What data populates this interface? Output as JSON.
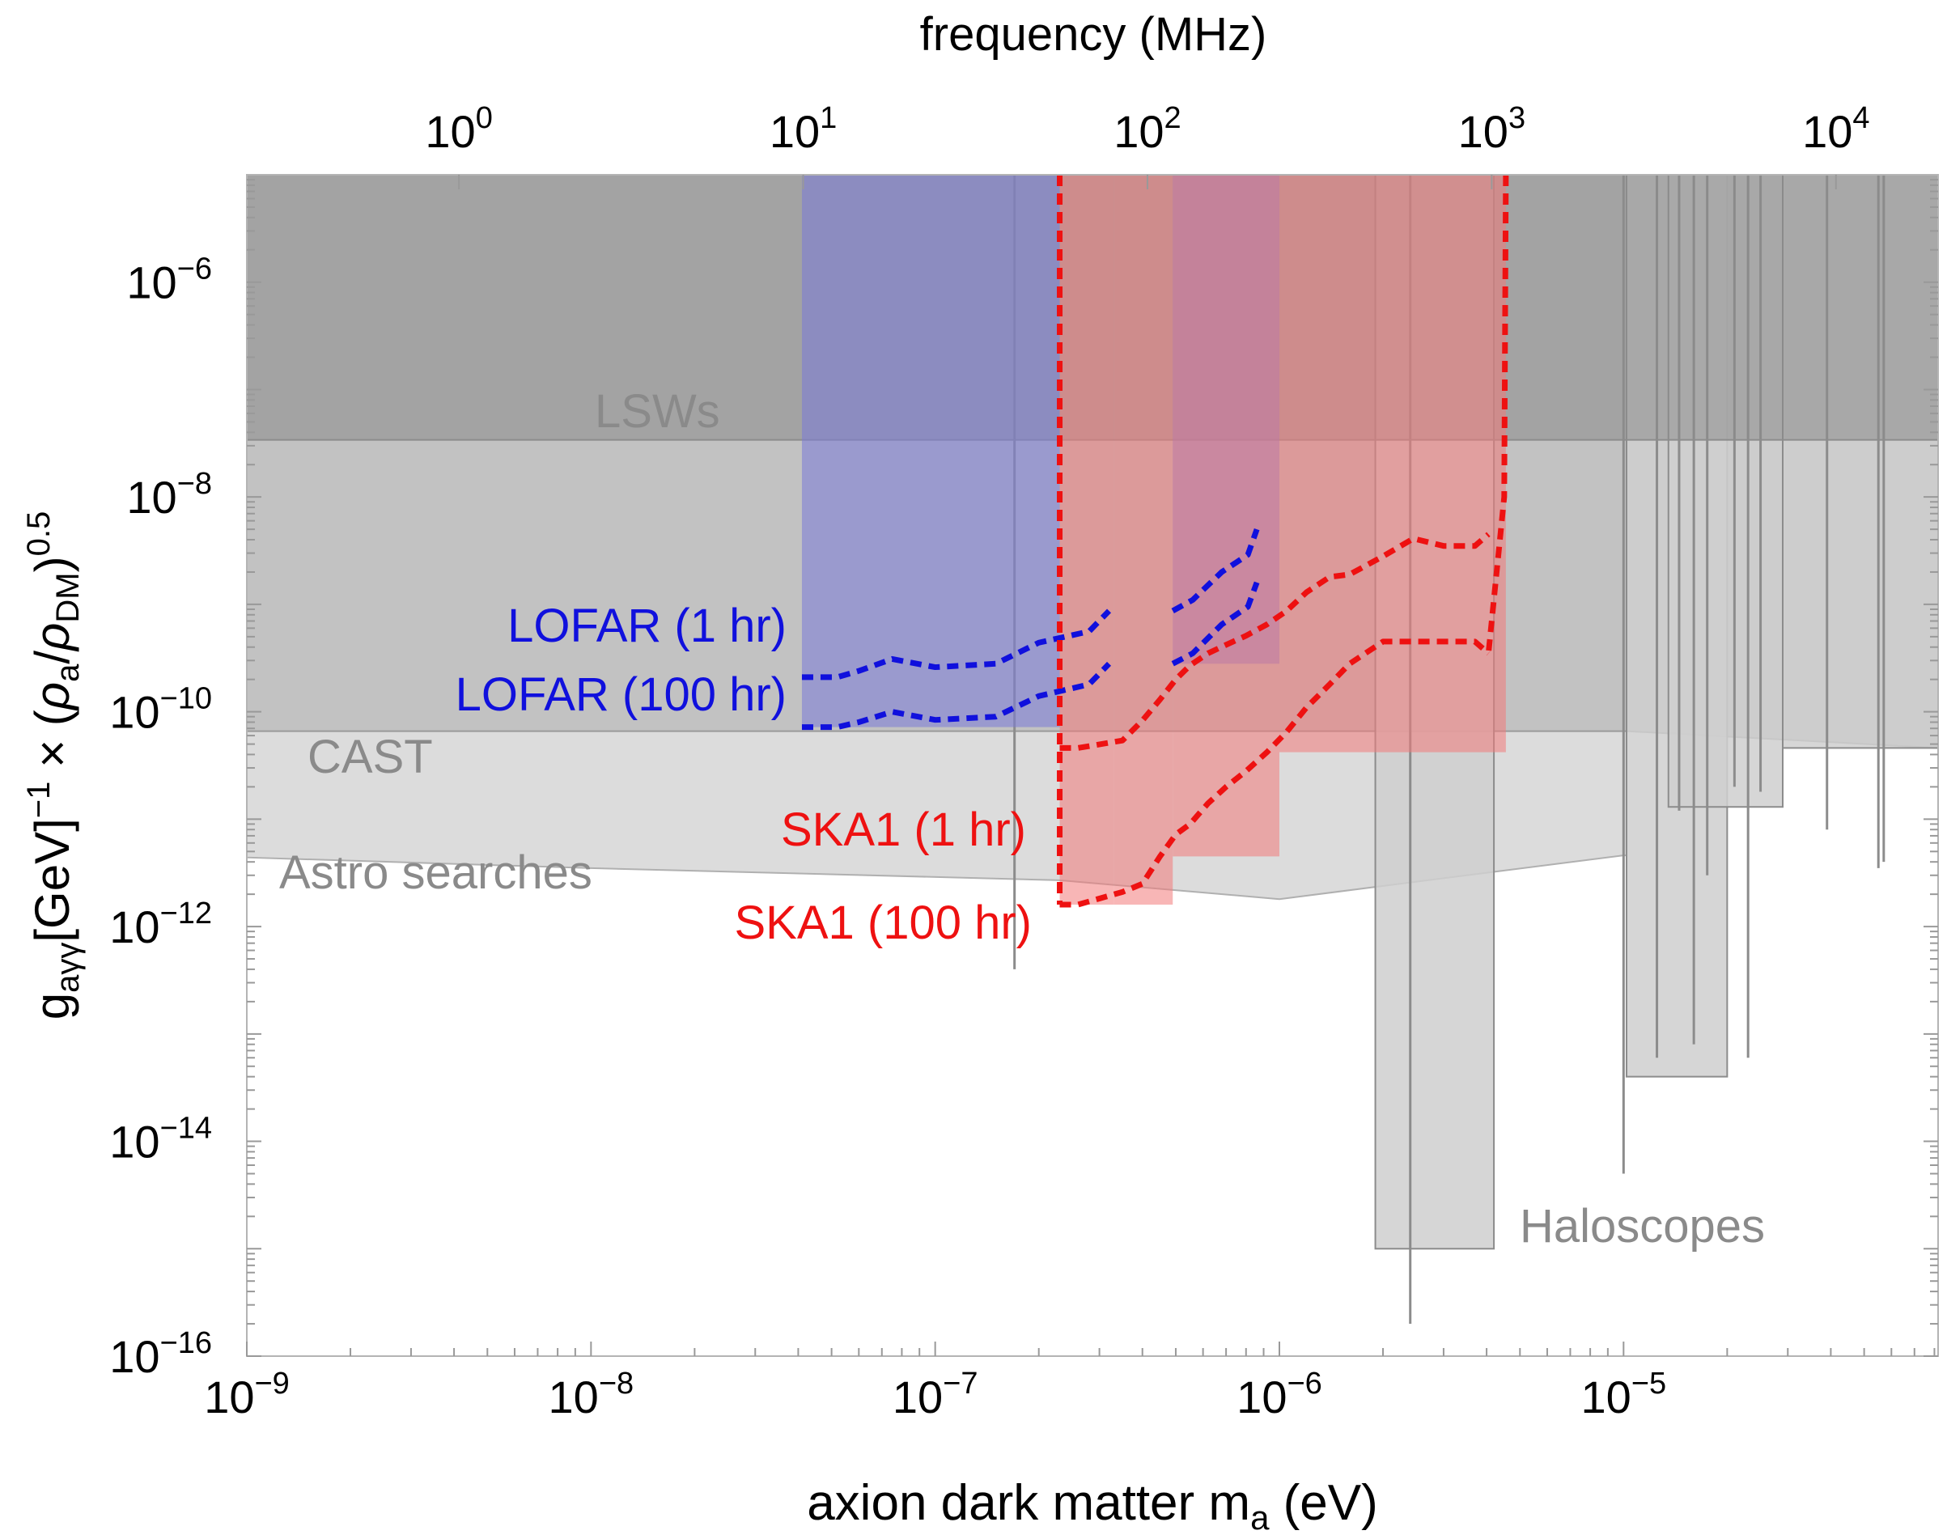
{
  "chart_data": {
    "type": "area",
    "title": "",
    "xlabel": "axion dark matter m",
    "xlabel_sub": "a",
    "xlabel_unit": " (eV)",
    "top_axis_label": "frequency (MHz)",
    "ylabel": {
      "g": "g",
      "g_sub": "aγγ",
      "mid": "[GeV]",
      "exp1": "−1",
      "times": " × (",
      "rho1": "ρ",
      "rho1_sub": "a",
      "slash": "/",
      "rho2": "ρ",
      "rho2_sub": "DM",
      "close": ")",
      "exp2": "0.5"
    },
    "x_scale": "log",
    "y_scale": "log",
    "xlim": [
      1e-09,
      8.2e-05
    ],
    "ylim": [
      1e-16,
      1e-05
    ],
    "top_axis_xlim_mhz": [
      0.242,
      19800
    ],
    "x_ticks": [
      {
        "value": 1e-09,
        "base": "10",
        "exp": "−9"
      },
      {
        "value": 1e-08,
        "base": "10",
        "exp": "−8"
      },
      {
        "value": 1e-07,
        "base": "10",
        "exp": "−7"
      },
      {
        "value": 1e-06,
        "base": "10",
        "exp": "−6"
      },
      {
        "value": 1e-05,
        "base": "10",
        "exp": "−5"
      }
    ],
    "y_ticks": [
      {
        "value": 1e-06,
        "base": "10",
        "exp": "−6"
      },
      {
        "value": 1e-08,
        "base": "10",
        "exp": "−8"
      },
      {
        "value": 1e-10,
        "base": "10",
        "exp": "−10"
      },
      {
        "value": 1e-12,
        "base": "10",
        "exp": "−12"
      },
      {
        "value": 1e-14,
        "base": "10",
        "exp": "−14"
      },
      {
        "value": 1e-16,
        "base": "10",
        "exp": "−16"
      }
    ],
    "top_ticks": [
      {
        "value": 1,
        "base": "10",
        "exp": "0"
      },
      {
        "value": 10,
        "base": "10",
        "exp": "1"
      },
      {
        "value": 100,
        "base": "10",
        "exp": "2"
      },
      {
        "value": 1000,
        "base": "10",
        "exp": "3"
      },
      {
        "value": 10000,
        "base": "10",
        "exp": "4"
      }
    ],
    "colors": {
      "lsw_fill": "#a8a8a8",
      "cast_fill": "#c2c2c2",
      "astro_fill": "#dcdcdc",
      "haloscope_fill": "#cfcfcf",
      "haloscope_edge": "#8c8c8c",
      "lofar_fill": "#7a7ad8",
      "ska_fill": "#f27a7a",
      "lofar_line": "#1010dd",
      "ska_line": "#ee1111",
      "label_gray": "#8a8a8a",
      "frame": "#b4b4b4"
    },
    "series": [
      {
        "name": "LSWs",
        "kind": "band",
        "g_min": 3.4e-08,
        "g_max": 1e-05
      },
      {
        "name": "CAST",
        "kind": "band",
        "g_min": 6.6e-11,
        "g_max": 3.4e-08,
        "upper_edge_x": [
          1e-09,
          1.02e-05,
          8.2e-05
        ],
        "upper_edge_g": [
          6.6e-11,
          6.6e-11,
          4.6e-11
        ]
      },
      {
        "name": "Astro searches",
        "kind": "limit",
        "x": [
          1e-09,
          1e-08,
          2.3e-07,
          1e-06,
          1e-05,
          1.02e-05
        ],
        "g": [
          4.4e-12,
          3.5e-12,
          2.7e-12,
          1.8e-12,
          4.6e-12,
          4.6e-12
        ]
      },
      {
        "name": "Haloscopes",
        "kind": "limit",
        "blocks": [
          {
            "x_min": 1.9e-06,
            "x_max": 4.2e-06,
            "g_min": 1e-15
          },
          {
            "x_min": 1.02e-05,
            "x_max": 2e-05,
            "g_min": 4e-14
          },
          {
            "x_min": 1.35e-05,
            "x_max": 2.9e-05,
            "g_min": 1.3e-11
          },
          {
            "x_min": 2.9e-05,
            "x_max": 8.2e-05,
            "g_min": 4.6e-11
          }
        ],
        "spikes": [
          {
            "x": 1.7e-07,
            "g_min": 4e-13
          },
          {
            "x": 2.4e-06,
            "g_min": 2e-16
          },
          {
            "x": 1e-05,
            "g_min": 5e-15
          },
          {
            "x": 1.25e-05,
            "g_min": 6e-14
          },
          {
            "x": 1.45e-05,
            "g_min": 1.2e-11
          },
          {
            "x": 1.6e-05,
            "g_min": 8e-14
          },
          {
            "x": 1.75e-05,
            "g_min": 3e-12
          },
          {
            "x": 2.1e-05,
            "g_min": 2e-11
          },
          {
            "x": 2.3e-05,
            "g_min": 6e-14
          },
          {
            "x": 2.5e-05,
            "g_min": 1.8e-11
          },
          {
            "x": 3.9e-05,
            "g_min": 8e-12
          },
          {
            "x": 5.5e-05,
            "g_min": 3.5e-12
          },
          {
            "x": 5.7e-05,
            "g_min": 4e-12
          }
        ]
      },
      {
        "name": "LOFAR (1 hr)",
        "kind": "projection",
        "x": [
          4.1e-08,
          5.2e-08,
          6e-08,
          7.5e-08,
          1e-07,
          1.5e-07,
          2e-07,
          2.8e-07,
          3.2e-07
        ],
        "g": [
          2.1e-10,
          2.1e-10,
          2.4e-10,
          3.1e-10,
          2.6e-10,
          2.8e-10,
          4.4e-10,
          5.6e-10,
          8.7e-10
        ],
        "x2": [
          4.9e-07,
          5.6e-07,
          6.8e-07,
          8.1e-07,
          8.6e-07
        ],
        "g2": [
          8.7e-10,
          1.1e-09,
          2e-09,
          2.9e-09,
          5e-09
        ]
      },
      {
        "name": "LOFAR (100 hr)",
        "kind": "projection",
        "x": [
          4.1e-08,
          5.2e-08,
          6e-08,
          7.5e-08,
          1e-07,
          1.5e-07,
          2e-07,
          2.8e-07,
          3.2e-07
        ],
        "g": [
          7.2e-11,
          7.2e-11,
          8e-11,
          1e-10,
          8.4e-11,
          9e-11,
          1.4e-10,
          1.8e-10,
          2.8e-10
        ],
        "x2": [
          4.9e-07,
          5.6e-07,
          6.8e-07,
          8.1e-07,
          8.6e-07
        ],
        "g2": [
          2.8e-10,
          3.5e-10,
          6.5e-10,
          9.5e-10,
          1.6e-09
        ]
      },
      {
        "name": "SKA1 (1 hr)",
        "kind": "projection",
        "x": [
          2.3e-07,
          2.6e-07,
          3.5e-07,
          4e-07,
          4.5e-07,
          5e-07,
          5.5e-07,
          6.2e-07,
          7e-07,
          8e-07,
          9.2e-07,
          1.05e-06,
          1.2e-06,
          1.4e-06,
          1.6e-06,
          2e-06,
          2.45e-06,
          3e-06,
          3.7e-06,
          4.05e-06
        ],
        "g": [
          4.6e-11,
          4.6e-11,
          5.4e-11,
          8.3e-11,
          1.3e-10,
          2e-10,
          2.7e-10,
          3.5e-10,
          4.2e-10,
          5.1e-10,
          6.5e-10,
          8.7e-10,
          1.3e-09,
          1.8e-09,
          1.9e-09,
          2.8e-09,
          4.1e-09,
          3.5e-09,
          3.5e-09,
          4.5e-09
        ]
      },
      {
        "name": "SKA1 (100 hr)",
        "kind": "projection",
        "x": [
          2.3e-07,
          2.6e-07,
          3.5e-07,
          4e-07,
          4.5e-07,
          5e-07,
          5.5e-07,
          6.2e-07,
          7e-07,
          8e-07,
          9.2e-07,
          1.05e-06,
          1.2e-06,
          1.4e-06,
          1.6e-06,
          2e-06,
          2.45e-06,
          3e-06,
          3.7e-06,
          4.05e-06
        ],
        "g": [
          1.6e-12,
          1.6e-12,
          2.1e-12,
          2.5e-12,
          4.5e-12,
          7.2e-12,
          9e-12,
          1.4e-11,
          2e-11,
          2.8e-11,
          4.2e-11,
          6.5e-11,
          1.1e-10,
          1.8e-10,
          2.8e-10,
          4.5e-10,
          4.5e-10,
          4.5e-10,
          4.5e-10,
          3.5e-10
        ]
      }
    ],
    "projection_bands": [
      {
        "name": "LOFAR",
        "x_min": 4.1e-08,
        "x_max": 2.3e-07,
        "color_key": "lofar_fill"
      },
      {
        "name": "LOFAR",
        "x_min": 4.9e-07,
        "x_max": 1e-06,
        "color_key": "lofar_fill"
      },
      {
        "name": "SKA1",
        "x_min": 2.3e-07,
        "x_max": 3.3e-07,
        "color_key": "ska_fill"
      },
      {
        "name": "SKA1",
        "x_min": 3.3e-07,
        "x_max": 4.9e-07,
        "color_key": "ska_fill"
      },
      {
        "name": "SKA1",
        "x_min": 4.9e-07,
        "x_max": 1e-06,
        "color_key": "ska_fill"
      },
      {
        "name": "SKA1",
        "x_min": 1e-06,
        "x_max": 4.55e-06,
        "color_key": "ska_fill"
      }
    ],
    "annotations": [
      {
        "text": "LSWs",
        "color_key": "label_gray"
      },
      {
        "text": "CAST",
        "color_key": "label_gray"
      },
      {
        "text": "Astro searches",
        "color_key": "label_gray"
      },
      {
        "text": "Haloscopes",
        "color_key": "label_gray"
      },
      {
        "text": "LOFAR (1 hr)",
        "color_key": "lofar_line"
      },
      {
        "text": "LOFAR (100 hr)",
        "color_key": "lofar_line"
      },
      {
        "text": "SKA1 (1 hr)",
        "color_key": "ska_line"
      },
      {
        "text": "SKA1 (100 hr)",
        "color_key": "ska_line"
      }
    ]
  }
}
